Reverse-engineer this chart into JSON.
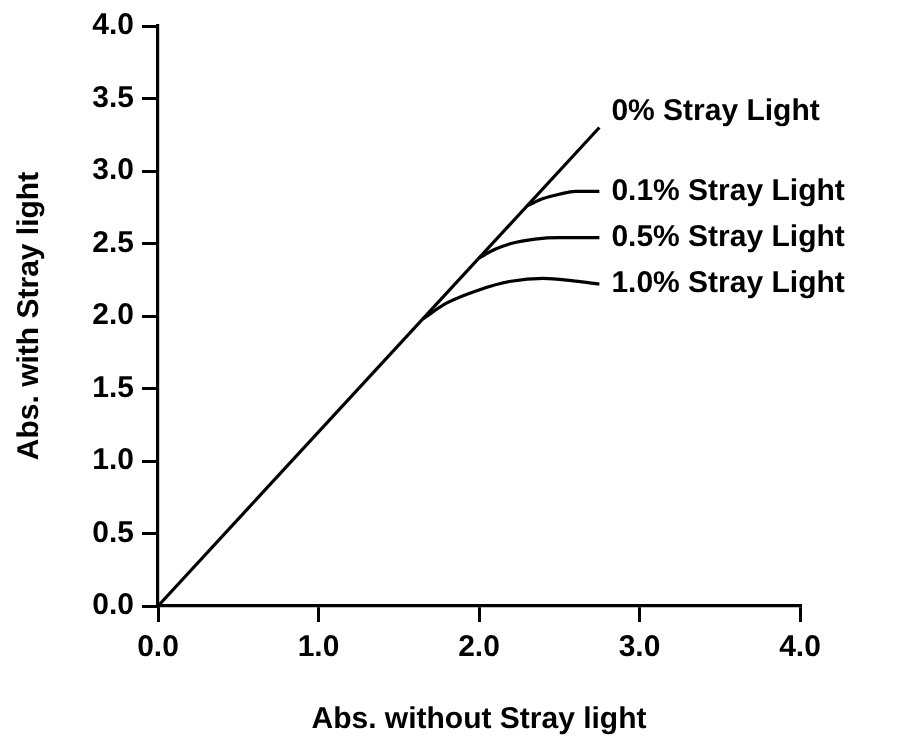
{
  "chart_data": {
    "type": "line",
    "xlabel": "Abs. without Stray light",
    "ylabel": "Abs. with Stray light",
    "xlim": [
      0,
      4
    ],
    "xticks": [
      {
        "value": 0,
        "label": "0.0"
      },
      {
        "value": 1,
        "label": "1.0"
      },
      {
        "value": 2,
        "label": "2.0"
      },
      {
        "value": 3,
        "label": "3.0"
      },
      {
        "value": 4,
        "label": "4.0"
      }
    ],
    "ylim": [
      0,
      4
    ],
    "yticks": [
      {
        "value": 0,
        "label": "0.0"
      },
      {
        "value": 0.5,
        "label": "0.5"
      },
      {
        "value": 1,
        "label": "1.0"
      },
      {
        "value": 1.5,
        "label": "1.5"
      },
      {
        "value": 2,
        "label": "2.0"
      },
      {
        "value": 2.5,
        "label": "2.5"
      },
      {
        "value": 3,
        "label": "3.0"
      },
      {
        "value": 3.5,
        "label": "3.5"
      },
      {
        "value": 4,
        "label": "4.0"
      }
    ],
    "grid": false,
    "legend": false,
    "marker": "none",
    "line_style": "solid",
    "series": [
      {
        "name": "0% Stray Light",
        "color": "#000000",
        "x": [
          0,
          2.75
        ],
        "values": [
          0,
          3.3
        ]
      },
      {
        "name": "0.1% Stray Light",
        "color": "#000000",
        "x": [
          2.3,
          2.4,
          2.5,
          2.6,
          2.75
        ],
        "values": [
          2.76,
          2.81,
          2.84,
          2.86,
          2.86
        ]
      },
      {
        "name": "0.5% Stray Light",
        "color": "#000000",
        "x": [
          2.0,
          2.1,
          2.2,
          2.35,
          2.5,
          2.75
        ],
        "values": [
          2.4,
          2.46,
          2.5,
          2.53,
          2.54,
          2.54
        ]
      },
      {
        "name": "1.0% Stray Light",
        "color": "#000000",
        "x": [
          1.65,
          1.8,
          2.0,
          2.2,
          2.4,
          2.6,
          2.75
        ],
        "values": [
          1.98,
          2.09,
          2.18,
          2.24,
          2.26,
          2.24,
          2.22
        ]
      }
    ]
  }
}
